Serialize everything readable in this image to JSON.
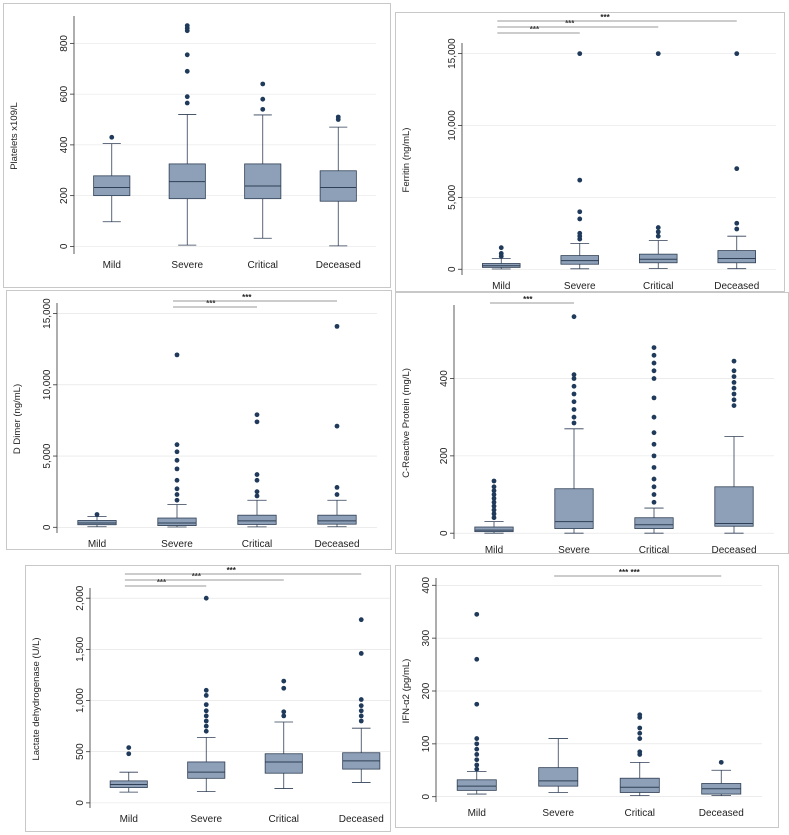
{
  "chart_data": [
    {
      "id": "platelets",
      "type": "boxplot",
      "ylabel": "Platelets x109/L",
      "ylim": [
        -30,
        900
      ],
      "yticks": [
        0,
        200,
        400,
        600,
        800
      ],
      "ytick_labels": [
        "0",
        "200",
        "400",
        "600",
        "800"
      ],
      "categories": [
        "Mild",
        "Severe",
        "Critical",
        "Deceased"
      ],
      "boxes": [
        {
          "q1": 200,
          "median": 232,
          "q3": 278,
          "whisker_low": 97,
          "whisker_high": 405,
          "outliers": [
            430
          ]
        },
        {
          "q1": 188,
          "median": 255,
          "q3": 325,
          "whisker_low": 5,
          "whisker_high": 520,
          "outliers": [
            565,
            590,
            690,
            755,
            850,
            860,
            870
          ]
        },
        {
          "q1": 188,
          "median": 238,
          "q3": 325,
          "whisker_low": 32,
          "whisker_high": 518,
          "outliers": [
            540,
            580,
            640
          ]
        },
        {
          "q1": 178,
          "median": 232,
          "q3": 298,
          "whisker_low": 2,
          "whisker_high": 470,
          "outliers": [
            500,
            510
          ]
        }
      ],
      "comparisons": []
    },
    {
      "id": "ferritin",
      "type": "boxplot",
      "ylabel": "Ferritin (ng/mL)",
      "ylim": [
        -400,
        15600
      ],
      "yticks": [
        0,
        5000,
        10000,
        15000
      ],
      "ytick_labels": [
        "0",
        "5,000",
        "10,000",
        "15,000"
      ],
      "categories": [
        "Mild",
        "Severe",
        "Critical",
        "Deceased"
      ],
      "boxes": [
        {
          "q1": 130,
          "median": 240,
          "q3": 400,
          "whisker_low": 20,
          "whisker_high": 750,
          "outliers": [
            900,
            1100,
            1500
          ]
        },
        {
          "q1": 350,
          "median": 600,
          "q3": 950,
          "whisker_low": 30,
          "whisker_high": 1800,
          "outliers": [
            2100,
            2300,
            2500,
            3500,
            4000,
            6200,
            15000
          ]
        },
        {
          "q1": 450,
          "median": 700,
          "q3": 1050,
          "whisker_low": 50,
          "whisker_high": 2000,
          "outliers": [
            2300,
            2600,
            2900,
            15000
          ]
        },
        {
          "q1": 450,
          "median": 750,
          "q3": 1300,
          "whisker_low": 40,
          "whisker_high": 2300,
          "outliers": [
            2800,
            3200,
            7000,
            15000
          ]
        }
      ],
      "comparisons": [
        {
          "from": 0,
          "to": 1,
          "label": "***"
        },
        {
          "from": 0,
          "to": 2,
          "label": "***"
        },
        {
          "from": 0,
          "to": 3,
          "label": "***"
        }
      ]
    },
    {
      "id": "ddimer",
      "type": "boxplot",
      "ylabel": "D Dimer (ng/mL)",
      "ylim": [
        -400,
        15600
      ],
      "yticks": [
        0,
        5000,
        10000,
        15000
      ],
      "ytick_labels": [
        "0",
        "5,000",
        "10,000",
        "15,000"
      ],
      "categories": [
        "Mild",
        "Severe",
        "Critical",
        "Deceased"
      ],
      "boxes": [
        {
          "q1": 180,
          "median": 300,
          "q3": 480,
          "whisker_low": 40,
          "whisker_high": 750,
          "outliers": [
            900
          ]
        },
        {
          "q1": 120,
          "median": 300,
          "q3": 650,
          "whisker_low": 20,
          "whisker_high": 1600,
          "outliers": [
            1900,
            2300,
            2700,
            3300,
            4100,
            4700,
            5300,
            5800,
            12100
          ]
        },
        {
          "q1": 200,
          "median": 450,
          "q3": 850,
          "whisker_low": 30,
          "whisker_high": 1900,
          "outliers": [
            2200,
            2500,
            3300,
            3700,
            7400,
            7900
          ]
        },
        {
          "q1": 220,
          "median": 450,
          "q3": 850,
          "whisker_low": 40,
          "whisker_high": 1900,
          "outliers": [
            2300,
            2800,
            7100,
            14100
          ]
        }
      ],
      "comparisons": [
        {
          "from": 1,
          "to": 2,
          "label": "***"
        },
        {
          "from": 1,
          "to": 3,
          "label": "***"
        }
      ]
    },
    {
      "id": "crp",
      "type": "boxplot",
      "ylabel": "C-Reactive Protein (mg/L)",
      "ylim": [
        -15,
        585
      ],
      "yticks": [
        0,
        200,
        400
      ],
      "ytick_labels": [
        "0",
        "200",
        "400"
      ],
      "categories": [
        "Mild",
        "Severe",
        "Critical",
        "Deceased"
      ],
      "boxes": [
        {
          "q1": 4,
          "median": 8,
          "q3": 16,
          "whisker_low": 0,
          "whisker_high": 30,
          "outliers": [
            40,
            50,
            60,
            70,
            80,
            90,
            100,
            110,
            120,
            135
          ]
        },
        {
          "q1": 12,
          "median": 30,
          "q3": 115,
          "whisker_low": 0,
          "whisker_high": 270,
          "outliers": [
            285,
            300,
            320,
            340,
            360,
            380,
            400,
            410,
            560
          ]
        },
        {
          "q1": 12,
          "median": 22,
          "q3": 40,
          "whisker_low": 0,
          "whisker_high": 65,
          "outliers": [
            80,
            100,
            120,
            140,
            170,
            200,
            230,
            260,
            300,
            350,
            400,
            420,
            440,
            460,
            480
          ]
        },
        {
          "q1": 18,
          "median": 25,
          "q3": 120,
          "whisker_low": 0,
          "whisker_high": 250,
          "outliers": [
            330,
            345,
            360,
            375,
            390,
            405,
            420,
            445
          ]
        }
      ],
      "comparisons": [
        {
          "from": 0,
          "to": 1,
          "label": "***"
        }
      ]
    },
    {
      "id": "ldh",
      "type": "boxplot",
      "ylabel": "Lactate dehydrogenase (U/L)",
      "ylim": [
        -50,
        2080
      ],
      "yticks": [
        0,
        500,
        1000,
        1500,
        2000
      ],
      "ytick_labels": [
        "0",
        "500",
        "1,000",
        "1,500",
        "2,000"
      ],
      "categories": [
        "Mild",
        "Severe",
        "Critical",
        "Deceased"
      ],
      "boxes": [
        {
          "q1": 150,
          "median": 180,
          "q3": 215,
          "whisker_low": 105,
          "whisker_high": 300,
          "outliers": [
            480,
            540
          ]
        },
        {
          "q1": 240,
          "median": 300,
          "q3": 400,
          "whisker_low": 110,
          "whisker_high": 640,
          "outliers": [
            700,
            750,
            800,
            850,
            900,
            960,
            1050,
            1100,
            2000
          ]
        },
        {
          "q1": 290,
          "median": 400,
          "q3": 480,
          "whisker_low": 140,
          "whisker_high": 790,
          "outliers": [
            850,
            890,
            1120,
            1190
          ]
        },
        {
          "q1": 330,
          "median": 410,
          "q3": 490,
          "whisker_low": 200,
          "whisker_high": 730,
          "outliers": [
            800,
            850,
            900,
            950,
            1010,
            1460,
            1790
          ]
        }
      ],
      "comparisons": [
        {
          "from": 0,
          "to": 1,
          "label": "***"
        },
        {
          "from": 0,
          "to": 2,
          "label": "***"
        },
        {
          "from": 0,
          "to": 3,
          "label": "***"
        }
      ]
    },
    {
      "id": "ifn",
      "type": "boxplot",
      "ylabel": "IFN-α2 (pg/mL)",
      "ylim": [
        -10,
        410
      ],
      "yticks": [
        0,
        100,
        200,
        300,
        400
      ],
      "ytick_labels": [
        "0",
        "100",
        "200",
        "300",
        "400"
      ],
      "categories": [
        "Mild",
        "Severe",
        "Critical",
        "Deceased"
      ],
      "boxes": [
        {
          "q1": 12,
          "median": 20,
          "q3": 32,
          "whisker_low": 5,
          "whisker_high": 48,
          "outliers": [
            52,
            60,
            70,
            80,
            90,
            100,
            110,
            175,
            260,
            345
          ]
        },
        {
          "q1": 20,
          "median": 30,
          "q3": 55,
          "whisker_low": 8,
          "whisker_high": 110,
          "outliers": []
        },
        {
          "q1": 8,
          "median": 18,
          "q3": 35,
          "whisker_low": 2,
          "whisker_high": 65,
          "outliers": [
            80,
            85,
            110,
            120,
            130,
            150,
            155
          ]
        },
        {
          "q1": 5,
          "median": 15,
          "q3": 25,
          "whisker_low": 2,
          "whisker_high": 50,
          "outliers": [
            65
          ]
        }
      ],
      "comparisons": [
        {
          "from": 1,
          "to": 3,
          "label": "*** ***"
        }
      ]
    }
  ],
  "colors": {
    "box_fill": "#8da0b7",
    "box_stroke": "#2f3f55",
    "outlier": "#1f3a5a",
    "axis": "#333333",
    "grid": "#e0e0e0",
    "bracket": "#777777"
  }
}
